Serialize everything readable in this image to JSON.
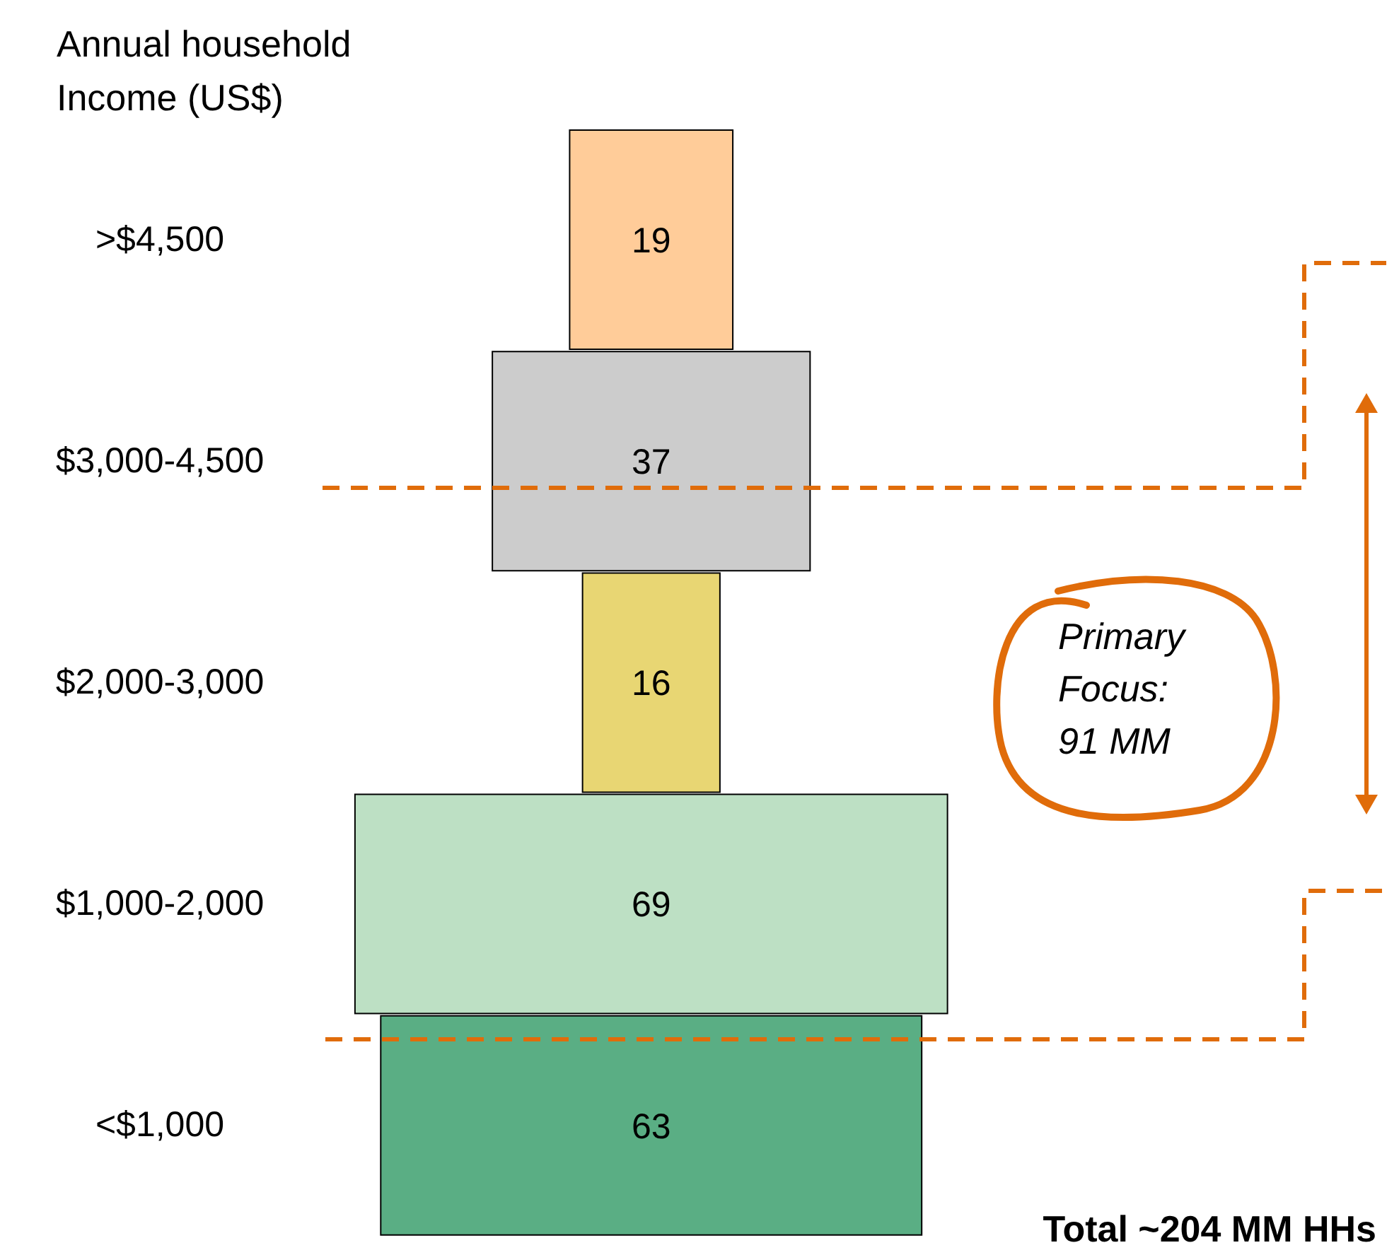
{
  "chart_data": {
    "type": "other",
    "ylabel": "Annual household Income (US$)",
    "categories": [
      ">$4,500",
      "$3,000-4,500",
      "$2,000-3,000",
      "$1,000-2,000",
      "<$1,000"
    ],
    "values": [
      19,
      37,
      16,
      69,
      63
    ],
    "colors": [
      "#ffcc99",
      "#cccccc",
      "#e8d673",
      "#bde0c4",
      "#5aae84"
    ],
    "data_labels": true,
    "annotations": [
      "Primary Focus: 91 MM",
      "Total ~204 MM HHs"
    ]
  }
}
